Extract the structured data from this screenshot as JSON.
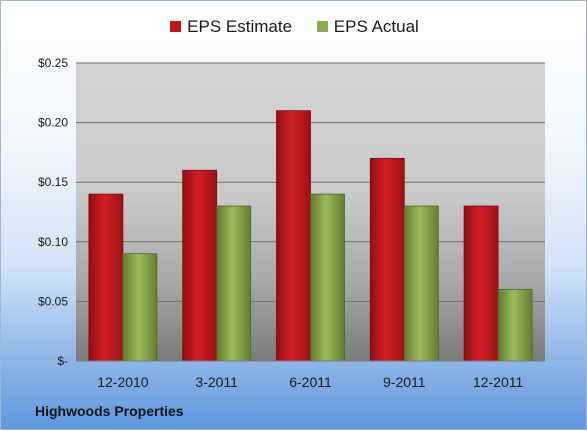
{
  "chart_data": {
    "type": "bar",
    "title": "",
    "xlabel": "",
    "ylabel": "",
    "categories": [
      "12-2010",
      "3-2011",
      "6-2011",
      "9-2011",
      "12-2011"
    ],
    "series": [
      {
        "name": "EPS Estimate",
        "color": "#c0161b",
        "values": [
          0.14,
          0.16,
          0.21,
          0.17,
          0.13
        ]
      },
      {
        "name": "EPS Actual",
        "color": "#8cab4e",
        "values": [
          0.09,
          0.13,
          0.14,
          0.13,
          0.06
        ]
      }
    ],
    "ylim": [
      0,
      0.25
    ],
    "yticks": [
      0,
      0.05,
      0.1,
      0.15,
      0.2,
      0.25
    ],
    "ytick_labels": [
      "$-",
      "$0.05",
      "$0.10",
      "$0.15",
      "$0.20",
      "$0.25"
    ],
    "grid": true,
    "legend_position": "top-center"
  },
  "footer": {
    "company_name": "Highwoods Properties"
  }
}
